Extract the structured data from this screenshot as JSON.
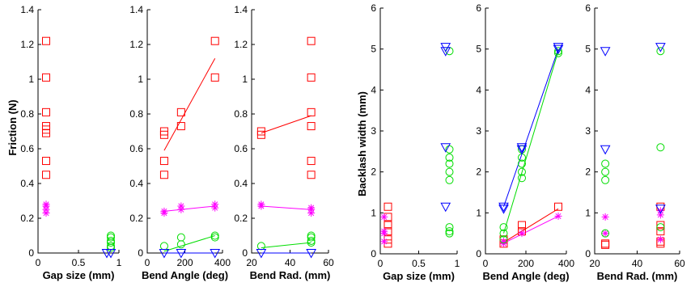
{
  "colors": {
    "red": "#ff0000",
    "magenta": "#ff00ff",
    "green": "#00dd00",
    "blue": "#0000ff",
    "axis": "#000000"
  },
  "markers": {
    "red": "square",
    "magenta": "asterisk",
    "green": "circle",
    "blue": "down-triangle"
  },
  "figure": {
    "left_ylabel": "Friction (N)",
    "right_ylabel": "Backlash width (mm)"
  },
  "chart_data": [
    {
      "type": "scatter",
      "title": "",
      "xlabel": "Gap size (mm)",
      "ylabel": "Friction (N)",
      "xlim": [
        0,
        1
      ],
      "ylim": [
        0,
        1.4
      ],
      "xticks": [
        0,
        0.5,
        1
      ],
      "xticklabels": [
        "0",
        "0.5",
        "1"
      ],
      "yticks": [
        0,
        0.2,
        0.4,
        0.6,
        0.8,
        1,
        1.2,
        1.4
      ],
      "yticklabels": [
        "0",
        "0.2",
        "0.4",
        "0.6",
        "0.8",
        "1",
        "1.2",
        "1.4"
      ],
      "series": [
        {
          "color": "red",
          "marker": "square",
          "points": [
            [
              0.1,
              1.22
            ],
            [
              0.1,
              1.01
            ],
            [
              0.1,
              0.81
            ],
            [
              0.1,
              0.73
            ],
            [
              0.1,
              0.71
            ],
            [
              0.1,
              0.69
            ],
            [
              0.1,
              0.53
            ],
            [
              0.1,
              0.45
            ]
          ]
        },
        {
          "color": "magenta",
          "marker": "asterisk",
          "points": [
            [
              0.1,
              0.28
            ],
            [
              0.1,
              0.27
            ],
            [
              0.1,
              0.25
            ],
            [
              0.1,
              0.23
            ]
          ]
        },
        {
          "color": "green",
          "marker": "circle",
          "points": [
            [
              0.9,
              0.1
            ],
            [
              0.9,
              0.09
            ],
            [
              0.9,
              0.07
            ],
            [
              0.9,
              0.06
            ],
            [
              0.9,
              0.04
            ],
            [
              0.9,
              0.03
            ]
          ]
        },
        {
          "color": "blue",
          "marker": "down-triangle",
          "points": [
            [
              0.85,
              0.0
            ],
            [
              0.9,
              0.0
            ]
          ]
        }
      ],
      "fit_lines": []
    },
    {
      "type": "scatter",
      "title": "",
      "xlabel": "Bend Angle (deg)",
      "ylabel": "",
      "xlim": [
        0,
        400
      ],
      "ylim": [
        0,
        1.4
      ],
      "xticks": [
        0,
        200,
        400
      ],
      "xticklabels": [
        "0",
        "200",
        "400"
      ],
      "yticks": [
        0,
        0.2,
        0.4,
        0.6,
        0.8,
        1,
        1.2,
        1.4
      ],
      "yticklabels": [
        "0",
        "0.2",
        "0.4",
        "0.6",
        "0.8",
        "1",
        "1.2",
        "1.4"
      ],
      "series": [
        {
          "color": "red",
          "marker": "square",
          "points": [
            [
              90,
              0.7
            ],
            [
              90,
              0.68
            ],
            [
              90,
              0.53
            ],
            [
              90,
              0.45
            ],
            [
              180,
              0.81
            ],
            [
              180,
              0.73
            ],
            [
              360,
              1.22
            ],
            [
              360,
              1.01
            ]
          ]
        },
        {
          "color": "magenta",
          "marker": "asterisk",
          "points": [
            [
              90,
              0.24
            ],
            [
              90,
              0.23
            ],
            [
              180,
              0.27
            ],
            [
              180,
              0.25
            ],
            [
              360,
              0.28
            ],
            [
              360,
              0.26
            ]
          ]
        },
        {
          "color": "green",
          "marker": "circle",
          "points": [
            [
              90,
              0.04
            ],
            [
              180,
              0.09
            ],
            [
              180,
              0.05
            ],
            [
              360,
              0.1
            ],
            [
              360,
              0.09
            ]
          ]
        },
        {
          "color": "blue",
          "marker": "down-triangle",
          "points": [
            [
              90,
              0.0
            ],
            [
              180,
              0.0
            ],
            [
              360,
              0.0
            ]
          ]
        }
      ],
      "fit_lines": [
        {
          "color": "red",
          "x": [
            90,
            360
          ],
          "y": [
            0.59,
            1.12
          ]
        },
        {
          "color": "magenta",
          "x": [
            90,
            360
          ],
          "y": [
            0.24,
            0.27
          ]
        },
        {
          "color": "green",
          "x": [
            90,
            360
          ],
          "y": [
            0.01,
            0.1
          ]
        },
        {
          "color": "blue",
          "x": [
            90,
            360
          ],
          "y": [
            0.0,
            0.0
          ]
        }
      ]
    },
    {
      "type": "scatter",
      "title": "",
      "xlabel": "Bend Rad. (mm)",
      "ylabel": "",
      "xlim": [
        20,
        60
      ],
      "ylim": [
        0,
        1.4
      ],
      "xticks": [
        20,
        40,
        60
      ],
      "xticklabels": [
        "20",
        "40",
        "60"
      ],
      "yticks": [
        0,
        0.2,
        0.4,
        0.6,
        0.8,
        1,
        1.2,
        1.4
      ],
      "yticklabels": [
        "0",
        "0.2",
        "0.4",
        "0.6",
        "0.8",
        "1",
        "1.2",
        "1.4"
      ],
      "series": [
        {
          "color": "red",
          "marker": "square",
          "points": [
            [
              25,
              0.7
            ],
            [
              25,
              0.68
            ],
            [
              51,
              1.22
            ],
            [
              51,
              1.01
            ],
            [
              51,
              0.81
            ],
            [
              51,
              0.73
            ],
            [
              51,
              0.53
            ],
            [
              51,
              0.45
            ]
          ]
        },
        {
          "color": "magenta",
          "marker": "asterisk",
          "points": [
            [
              25,
              0.28
            ],
            [
              25,
              0.27
            ],
            [
              51,
              0.26
            ],
            [
              51,
              0.25
            ],
            [
              51,
              0.23
            ]
          ]
        },
        {
          "color": "green",
          "marker": "circle",
          "points": [
            [
              25,
              0.04
            ],
            [
              51,
              0.1
            ],
            [
              51,
              0.09
            ],
            [
              51,
              0.07
            ],
            [
              51,
              0.06
            ]
          ]
        },
        {
          "color": "blue",
          "marker": "down-triangle",
          "points": [
            [
              25,
              0.0
            ],
            [
              51,
              0.0
            ]
          ]
        }
      ],
      "fit_lines": [
        {
          "color": "red",
          "x": [
            25,
            51
          ],
          "y": [
            0.69,
            0.79
          ]
        },
        {
          "color": "magenta",
          "x": [
            25,
            51
          ],
          "y": [
            0.27,
            0.25
          ]
        },
        {
          "color": "green",
          "x": [
            25,
            51
          ],
          "y": [
            0.03,
            0.06
          ]
        },
        {
          "color": "blue",
          "x": [
            25,
            51
          ],
          "y": [
            0.0,
            0.0
          ]
        }
      ]
    },
    {
      "type": "scatter",
      "title": "",
      "xlabel": "Gap size (mm)",
      "ylabel": "Backlash width (mm)",
      "xlim": [
        0,
        1
      ],
      "ylim": [
        0,
        6
      ],
      "xticks": [
        0,
        0.5,
        1
      ],
      "xticklabels": [
        "0",
        "0.5",
        "1"
      ],
      "yticks": [
        0,
        1,
        2,
        3,
        4,
        5,
        6
      ],
      "yticklabels": [
        "0",
        "1",
        "2",
        "3",
        "4",
        "5",
        "6"
      ],
      "series": [
        {
          "color": "red",
          "marker": "square",
          "points": [
            [
              0.1,
              1.15
            ],
            [
              0.1,
              0.9
            ],
            [
              0.1,
              0.7
            ],
            [
              0.1,
              0.55
            ],
            [
              0.1,
              0.35
            ],
            [
              0.1,
              0.25
            ]
          ]
        },
        {
          "color": "magenta",
          "marker": "asterisk",
          "points": [
            [
              0.05,
              0.9
            ],
            [
              0.05,
              0.55
            ],
            [
              0.05,
              0.5
            ],
            [
              0.05,
              0.3
            ]
          ]
        },
        {
          "color": "green",
          "marker": "circle",
          "points": [
            [
              0.9,
              4.95
            ],
            [
              0.9,
              2.55
            ],
            [
              0.9,
              2.35
            ],
            [
              0.9,
              2.2
            ],
            [
              0.9,
              2.0
            ],
            [
              0.9,
              1.8
            ],
            [
              0.9,
              0.65
            ],
            [
              0.9,
              0.55
            ],
            [
              0.9,
              0.5
            ]
          ]
        },
        {
          "color": "blue",
          "marker": "down-triangle",
          "points": [
            [
              0.85,
              5.05
            ],
            [
              0.85,
              4.95
            ],
            [
              0.85,
              2.6
            ],
            [
              0.85,
              1.15
            ]
          ]
        }
      ],
      "fit_lines": []
    },
    {
      "type": "scatter",
      "title": "",
      "xlabel": "Bend Angle (deg)",
      "ylabel": "",
      "xlim": [
        0,
        400
      ],
      "ylim": [
        0,
        6
      ],
      "xticks": [
        0,
        200,
        400
      ],
      "xticklabels": [
        "0",
        "200",
        "400"
      ],
      "yticks": [
        0,
        1,
        2,
        3,
        4,
        5,
        6
      ],
      "yticklabels": [
        "0",
        "1",
        "2",
        "3",
        "4",
        "5",
        "6"
      ],
      "series": [
        {
          "color": "red",
          "marker": "square",
          "points": [
            [
              90,
              0.35
            ],
            [
              90,
              0.25
            ],
            [
              180,
              0.7
            ],
            [
              180,
              0.55
            ],
            [
              360,
              1.15
            ]
          ]
        },
        {
          "color": "magenta",
          "marker": "asterisk",
          "points": [
            [
              90,
              0.3
            ],
            [
              90,
              0.25
            ],
            [
              180,
              0.5
            ],
            [
              360,
              0.92
            ]
          ]
        },
        {
          "color": "green",
          "marker": "circle",
          "points": [
            [
              90,
              0.65
            ],
            [
              90,
              0.5
            ],
            [
              90,
              0.35
            ],
            [
              180,
              2.55
            ],
            [
              180,
              2.35
            ],
            [
              180,
              2.2
            ],
            [
              180,
              2.0
            ],
            [
              180,
              1.85
            ],
            [
              360,
              4.95
            ],
            [
              360,
              4.9
            ]
          ]
        },
        {
          "color": "blue",
          "marker": "down-triangle",
          "points": [
            [
              90,
              1.15
            ],
            [
              90,
              1.1
            ],
            [
              180,
              2.6
            ],
            [
              180,
              2.55
            ],
            [
              360,
              5.05
            ],
            [
              360,
              5.0
            ]
          ]
        }
      ],
      "fit_lines": [
        {
          "color": "red",
          "x": [
            90,
            360
          ],
          "y": [
            0.28,
            1.1
          ]
        },
        {
          "color": "magenta",
          "x": [
            90,
            360
          ],
          "y": [
            0.26,
            0.92
          ]
        },
        {
          "color": "green",
          "x": [
            90,
            360
          ],
          "y": [
            0.5,
            4.95
          ]
        },
        {
          "color": "blue",
          "x": [
            90,
            360
          ],
          "y": [
            1.15,
            5.0
          ]
        }
      ]
    },
    {
      "type": "scatter",
      "title": "",
      "xlabel": "Bend Rad. (mm)",
      "ylabel": "",
      "xlim": [
        20,
        60
      ],
      "ylim": [
        0,
        6
      ],
      "xticks": [
        20,
        40,
        60
      ],
      "xticklabels": [
        "20",
        "40",
        "60"
      ],
      "yticks": [
        0,
        1,
        2,
        3,
        4,
        5,
        6
      ],
      "yticklabels": [
        "0",
        "1",
        "2",
        "3",
        "4",
        "5",
        "6"
      ],
      "series": [
        {
          "color": "red",
          "marker": "square",
          "points": [
            [
              25,
              0.25
            ],
            [
              25,
              0.22
            ],
            [
              51,
              1.15
            ],
            [
              51,
              0.7
            ],
            [
              51,
              0.55
            ],
            [
              51,
              0.3
            ],
            [
              51,
              0.25
            ]
          ]
        },
        {
          "color": "magenta",
          "marker": "asterisk",
          "points": [
            [
              25,
              0.9
            ],
            [
              25,
              0.5
            ],
            [
              51,
              1.05
            ],
            [
              51,
              0.95
            ],
            [
              51,
              0.35
            ]
          ]
        },
        {
          "color": "green",
          "marker": "circle",
          "points": [
            [
              25,
              2.2
            ],
            [
              25,
              2.0
            ],
            [
              25,
              1.8
            ],
            [
              25,
              0.5
            ],
            [
              51,
              4.95
            ],
            [
              51,
              2.6
            ],
            [
              51,
              0.65
            ]
          ]
        },
        {
          "color": "blue",
          "marker": "down-triangle",
          "points": [
            [
              25,
              4.95
            ],
            [
              25,
              2.55
            ],
            [
              51,
              5.05
            ],
            [
              51,
              1.1
            ]
          ]
        }
      ],
      "fit_lines": []
    }
  ]
}
